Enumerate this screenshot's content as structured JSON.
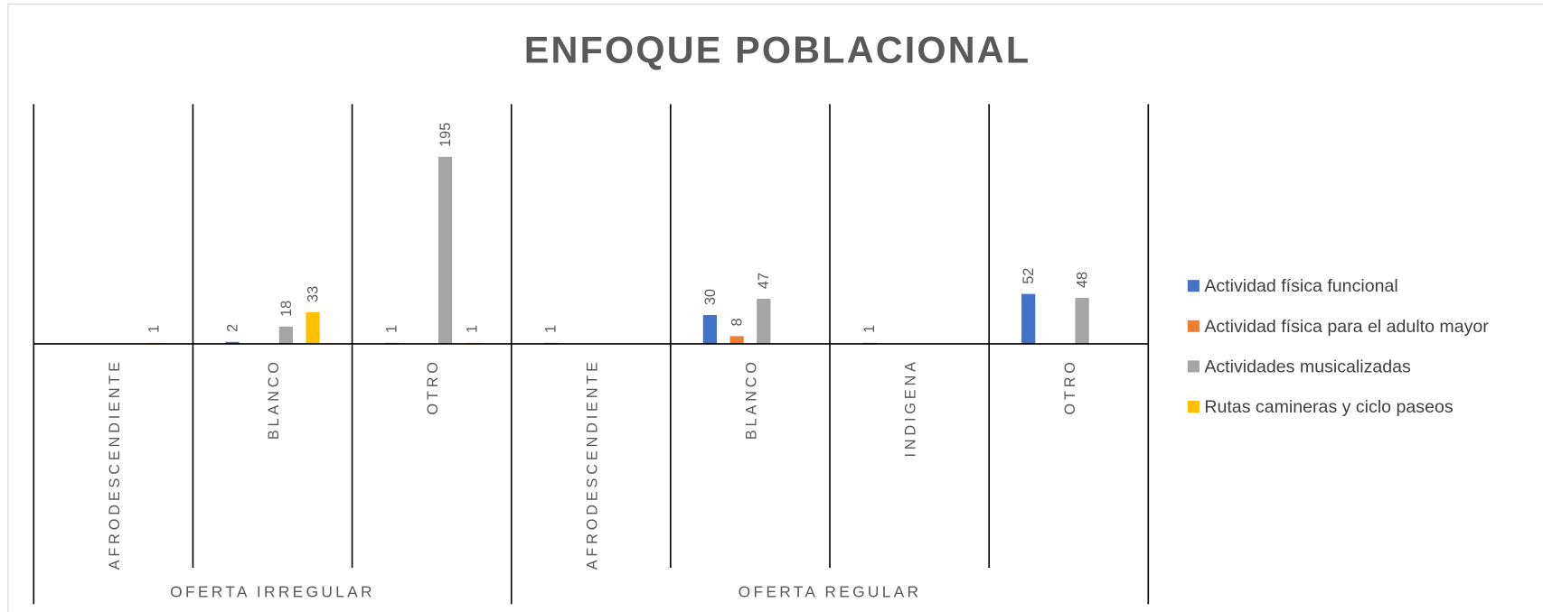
{
  "chart_data": {
    "type": "bar",
    "title": "ENFOQUE POBLACIONAL",
    "groups": [
      {
        "name": "OFERTA IRREGULAR",
        "categories": [
          "AFRODESCENDIENTE",
          "BLANCO",
          "OTRO"
        ]
      },
      {
        "name": "OFERTA REGULAR",
        "categories": [
          "AFRODESCENDIENTE",
          "BLANCO",
          "INDIGENA",
          "OTRO"
        ]
      }
    ],
    "series": [
      {
        "name": "Actividad física funcional",
        "color": "#4472c4",
        "values": [
          null,
          2,
          1,
          1,
          30,
          1,
          52
        ]
      },
      {
        "name": "Actividad física para el adulto mayor",
        "color": "#ed7d31",
        "values": [
          null,
          null,
          null,
          null,
          8,
          null,
          null
        ]
      },
      {
        "name": "Actividades musicalizadas",
        "color": "#a5a5a5",
        "values": [
          null,
          18,
          195,
          null,
          47,
          null,
          48
        ]
      },
      {
        "name": "Rutas camineras y ciclo paseos",
        "color": "#ffc000",
        "values": [
          1,
          33,
          1,
          null,
          null,
          null,
          null
        ]
      }
    ],
    "ylim": [
      0,
      250
    ],
    "legend": "right"
  }
}
